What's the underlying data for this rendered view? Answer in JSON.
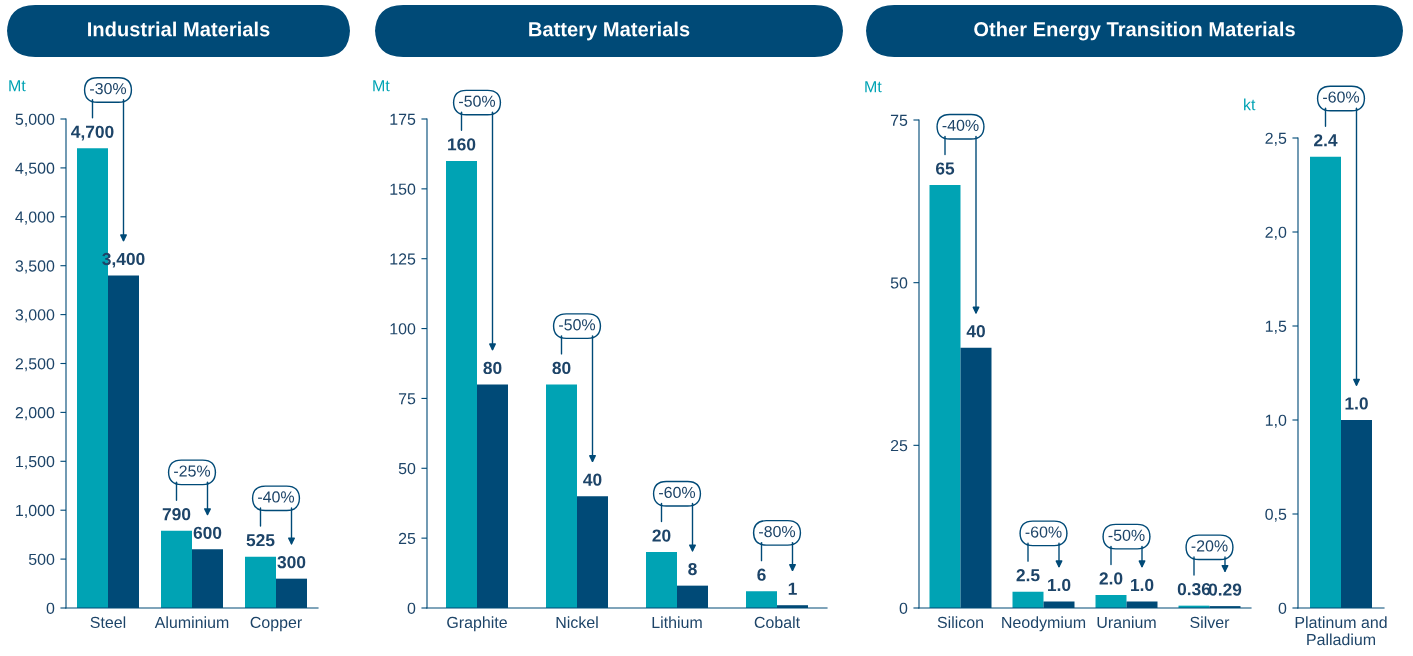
{
  "chart_data": [
    {
      "type": "bar",
      "title": "Industrial Materials",
      "ylabel": "Mt",
      "categories": [
        "Steel",
        "Aluminium",
        "Copper"
      ],
      "series": [
        {
          "color": "#00a3b4",
          "values": [
            4700,
            790,
            525
          ],
          "value_labels": [
            "4,700",
            "790",
            "525"
          ]
        },
        {
          "color": "#004a77",
          "values": [
            3400,
            600,
            300
          ],
          "value_labels": [
            "3,400",
            "600",
            "300"
          ]
        }
      ],
      "ylim": [
        0,
        5000
      ],
      "yticks": [
        0,
        {
          "value": 500,
          "label": "500"
        },
        {
          "value": 1000,
          "label": "1,000"
        },
        {
          "value": 1500,
          "label": "1,500"
        },
        {
          "value": 2000,
          "label": "2,000"
        },
        {
          "value": 2500,
          "label": "2,500"
        },
        {
          "value": 3000,
          "label": "3,000"
        },
        {
          "value": 3500,
          "label": "3,500"
        },
        {
          "value": 4000,
          "label": "4,000"
        },
        {
          "value": 4500,
          "label": "4,500"
        },
        {
          "value": 5000,
          "label": "5,000"
        }
      ],
      "annotations": [
        "-30%",
        "-25%",
        "-40%"
      ],
      "grid": false
    },
    {
      "type": "bar",
      "title": "Battery Materials",
      "ylabel": "Mt",
      "categories": [
        "Graphite",
        "Nickel",
        "Lithium",
        "Cobalt"
      ],
      "series": [
        {
          "color": "#00a3b4",
          "values": [
            160,
            80,
            20,
            6
          ],
          "value_labels": [
            "160",
            "80",
            "20",
            "6"
          ]
        },
        {
          "color": "#004a77",
          "values": [
            80,
            40,
            8,
            1
          ],
          "value_labels": [
            "80",
            "40",
            "8",
            "1"
          ]
        }
      ],
      "ylim": [
        0,
        175
      ],
      "yticks": [
        0,
        25,
        50,
        75,
        100,
        125,
        150,
        175
      ],
      "annotations": [
        "-50%",
        "-50%",
        "-60%",
        "-80%"
      ],
      "grid": false
    },
    {
      "type": "bar",
      "title": "Other Energy Transition Materials",
      "ylabel": "Mt",
      "categories": [
        "Silicon",
        "Neodymium",
        "Uranium",
        "Silver"
      ],
      "series": [
        {
          "color": "#00a3b4",
          "values": [
            65,
            2.5,
            2.0,
            0.36
          ],
          "value_labels": [
            "65",
            "2.5",
            "2.0",
            "0.36"
          ]
        },
        {
          "color": "#004a77",
          "values": [
            40,
            1.0,
            1.0,
            0.29
          ],
          "value_labels": [
            "40",
            "1.0",
            "1.0",
            "0.29"
          ]
        }
      ],
      "ylim": [
        0,
        75
      ],
      "yticks": [
        0,
        25,
        50,
        75
      ],
      "annotations": [
        "-40%",
        "-60%",
        "-50%",
        "-20%"
      ],
      "grid": false
    },
    {
      "type": "bar",
      "ylabel": "kt",
      "categories": [
        "Platinum and\nPalladium"
      ],
      "series": [
        {
          "color": "#00a3b4",
          "values": [
            2.4
          ],
          "value_labels": [
            "2.4"
          ]
        },
        {
          "color": "#004a77",
          "values": [
            1.0
          ],
          "value_labels": [
            "1.0"
          ]
        }
      ],
      "ylim": [
        0,
        2.5
      ],
      "yticks": [
        0,
        {
          "value": 0.5,
          "label": "0,5"
        },
        {
          "value": 1.0,
          "label": "1,0"
        },
        {
          "value": 1.5,
          "label": "1,5"
        },
        {
          "value": 2.0,
          "label": "2,0"
        },
        {
          "value": 2.5,
          "label": "2,5"
        }
      ],
      "annotations": [
        "-60%"
      ],
      "grid": false
    }
  ]
}
